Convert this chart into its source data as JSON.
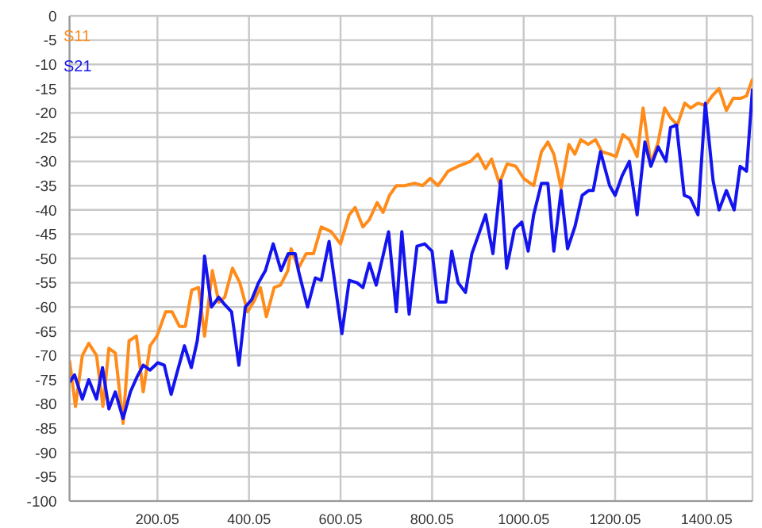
{
  "chart_data": {
    "type": "line",
    "xlim": [
      8,
      1500
    ],
    "xticks": [
      200.05,
      400.05,
      600.05,
      800.05,
      1000.05,
      1200.05,
      1400.05
    ],
    "ylim": [
      -100,
      0
    ],
    "yticks": [
      -100,
      -95,
      -90,
      -85,
      -80,
      -75,
      -70,
      -65,
      -60,
      -55,
      -50,
      -45,
      -40,
      -35,
      -30,
      -25,
      -20,
      -15,
      -10,
      -5,
      0
    ],
    "grid": true,
    "legend": "top left",
    "marker": "none",
    "line_style": "solid",
    "series": [
      {
        "name": "S11",
        "color": "#ff8c1a",
        "x": [
          8,
          21,
          36,
          50,
          67,
          81,
          94,
          108,
          125,
          138,
          154,
          169,
          184,
          199,
          218,
          232,
          248,
          261,
          275,
          290,
          303,
          320,
          334,
          347,
          364,
          380,
          397,
          410,
          425,
          438,
          455,
          469,
          485,
          492,
          508,
          525,
          541,
          558,
          580,
          600,
          619,
          632,
          649,
          663,
          680,
          693,
          707,
          722,
          740,
          762,
          779,
          796,
          813,
          835,
          857,
          884,
          900,
          917,
          930,
          947,
          964,
          983,
          1000,
          1022,
          1039,
          1053,
          1066,
          1082,
          1099,
          1112,
          1125,
          1141,
          1157,
          1171,
          1188,
          1202,
          1217,
          1231,
          1248,
          1261,
          1278,
          1294,
          1308,
          1321,
          1336,
          1352,
          1365,
          1381,
          1397,
          1412,
          1427,
          1443,
          1458,
          1474,
          1487,
          1500
        ],
        "values": [
          -71,
          -80.5,
          -70,
          -67.5,
          -70,
          -80.5,
          -68.5,
          -69.5,
          -84,
          -67,
          -66,
          -77.5,
          -68,
          -66,
          -61,
          -61,
          -64,
          -64,
          -56.5,
          -56,
          -66,
          -52.5,
          -59,
          -58,
          -52,
          -55,
          -61,
          -59,
          -56,
          -62,
          -56,
          -55.5,
          -52.5,
          -48,
          -52,
          -49,
          -49,
          -43.5,
          -44.5,
          -47,
          -41,
          -39.5,
          -43.5,
          -42,
          -38.5,
          -40.5,
          -37,
          -35,
          -35,
          -34.5,
          -35,
          -33.5,
          -35,
          -32,
          -31,
          -30,
          -28.5,
          -31.5,
          -29.5,
          -34.5,
          -30.5,
          -31,
          -33.5,
          -35,
          -28,
          -26,
          -28.5,
          -35.5,
          -26.5,
          -28.5,
          -25.5,
          -26.5,
          -25.5,
          -28,
          -28.5,
          -29,
          -24.5,
          -25.5,
          -29,
          -19,
          -30.5,
          -26,
          -19,
          -21,
          -22.5,
          -18,
          -19,
          -18,
          -18.5,
          -16.5,
          -15,
          -19.5,
          -17,
          -17,
          -16.5,
          -13
        ]
      },
      {
        "name": "S21",
        "color": "#1414f0",
        "x": [
          8,
          19,
          36,
          50,
          67,
          80,
          94,
          108,
          125,
          141,
          155,
          169,
          184,
          201,
          215,
          230,
          243,
          259,
          274,
          287,
          296,
          303,
          318,
          334,
          347,
          362,
          378,
          392,
          406,
          421,
          436,
          453,
          470,
          486,
          501,
          508,
          528,
          545,
          558,
          575,
          603,
          619,
          636,
          649,
          663,
          678,
          705,
          722,
          734,
          750,
          767,
          784,
          800,
          813,
          830,
          843,
          857,
          873,
          887,
          917,
          933,
          950,
          963,
          980,
          996,
          1010,
          1022,
          1039,
          1053,
          1066,
          1082,
          1096,
          1112,
          1128,
          1142,
          1152,
          1168,
          1188,
          1200,
          1215,
          1231,
          1248,
          1265,
          1278,
          1294,
          1311,
          1321,
          1334,
          1351,
          1364,
          1381,
          1397,
          1414,
          1427,
          1443,
          1460,
          1473,
          1487,
          1500
        ],
        "values": [
          -75.5,
          -74,
          -79,
          -75,
          -79,
          -72.5,
          -81,
          -77.5,
          -83,
          -77.5,
          -74.5,
          -72,
          -73,
          -71.5,
          -72,
          -78,
          -73.5,
          -68,
          -72.5,
          -67,
          -60,
          -49.5,
          -60,
          -58,
          -59.5,
          -61,
          -72,
          -60,
          -58.5,
          -55,
          -52.5,
          -47,
          -52.5,
          -49,
          -49,
          -52.5,
          -60,
          -54,
          -54.5,
          -46.5,
          -65.5,
          -54.5,
          -55,
          -56,
          -51,
          -55.5,
          -44.5,
          -61,
          -44.5,
          -61.5,
          -47.5,
          -47,
          -48.5,
          -59,
          -59,
          -48.5,
          -55,
          -57,
          -49,
          -41,
          -49,
          -34,
          -52,
          -44,
          -42.5,
          -48.5,
          -41,
          -34.5,
          -34.5,
          -48.5,
          -36,
          -48,
          -43.5,
          -37,
          -36,
          -36,
          -28,
          -35,
          -37,
          -33,
          -30,
          -41,
          -26,
          -31,
          -27,
          -30,
          -23,
          -22.5,
          -37,
          -37.5,
          -41,
          -18,
          -34,
          -40,
          -36,
          -40,
          -31,
          -32,
          -15
        ]
      }
    ]
  }
}
